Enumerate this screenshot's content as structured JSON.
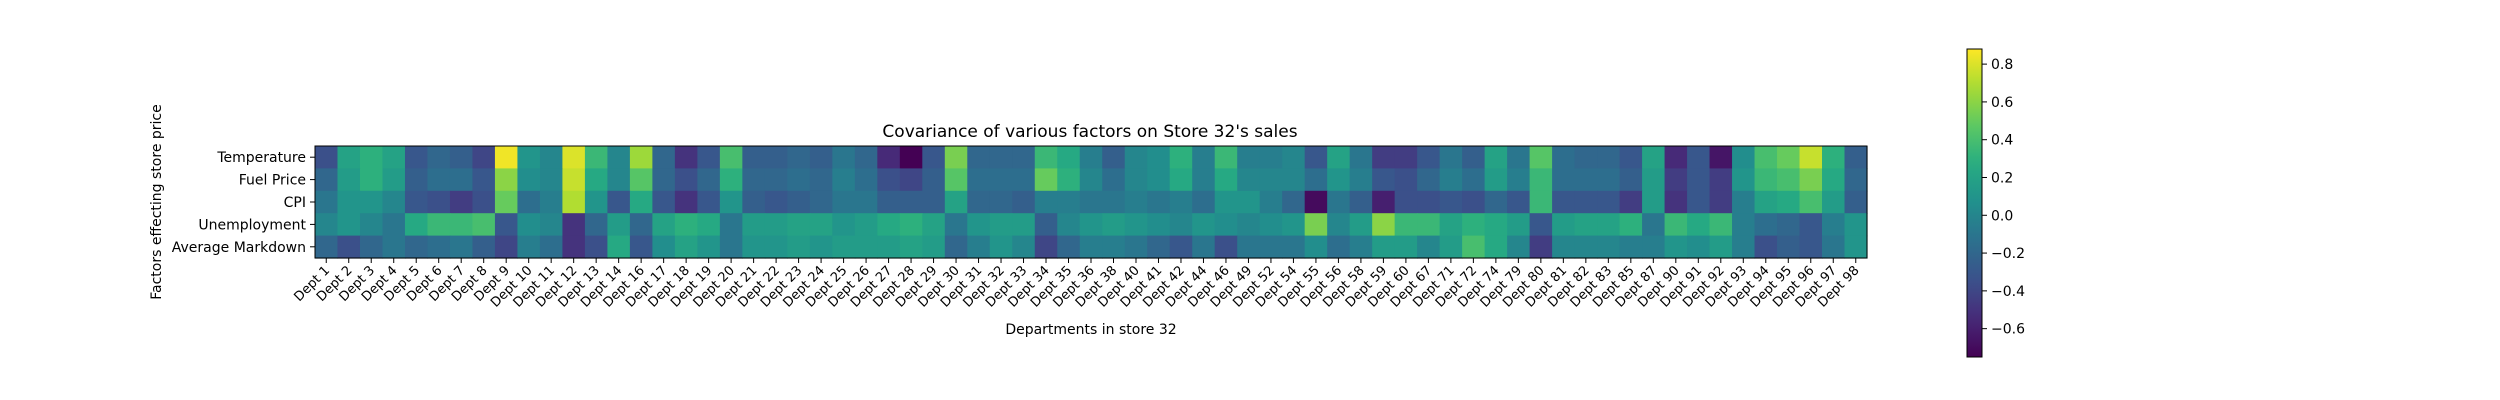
{
  "chart_data": {
    "type": "heatmap",
    "title": "Covariance of various factors on Store 32's sales",
    "xlabel": "Departments in store 32",
    "ylabel": "Factors effecting store price",
    "rows": [
      "Temperature",
      "Fuel Price",
      "CPI",
      "Unemployment",
      "Average Markdown"
    ],
    "columns": [
      "Dept 1",
      "Dept 2",
      "Dept 3",
      "Dept 4",
      "Dept 5",
      "Dept 6",
      "Dept 7",
      "Dept 8",
      "Dept 9",
      "Dept 10",
      "Dept 11",
      "Dept 12",
      "Dept 13",
      "Dept 14",
      "Dept 16",
      "Dept 17",
      "Dept 18",
      "Dept 19",
      "Dept 20",
      "Dept 21",
      "Dept 22",
      "Dept 23",
      "Dept 24",
      "Dept 25",
      "Dept 26",
      "Dept 27",
      "Dept 28",
      "Dept 29",
      "Dept 30",
      "Dept 31",
      "Dept 32",
      "Dept 33",
      "Dept 34",
      "Dept 35",
      "Dept 36",
      "Dept 38",
      "Dept 40",
      "Dept 41",
      "Dept 42",
      "Dept 44",
      "Dept 46",
      "Dept 49",
      "Dept 52",
      "Dept 54",
      "Dept 55",
      "Dept 56",
      "Dept 58",
      "Dept 59",
      "Dept 60",
      "Dept 67",
      "Dept 71",
      "Dept 72",
      "Dept 74",
      "Dept 79",
      "Dept 80",
      "Dept 81",
      "Dept 82",
      "Dept 83",
      "Dept 85",
      "Dept 87",
      "Dept 90",
      "Dept 91",
      "Dept 92",
      "Dept 93",
      "Dept 94",
      "Dept 95",
      "Dept 96",
      "Dept 97",
      "Dept 98"
    ],
    "values": [
      [
        -0.35,
        0.2,
        0.3,
        0.2,
        -0.3,
        -0.2,
        -0.25,
        -0.4,
        0.85,
        0.1,
        0.0,
        0.8,
        0.35,
        0.0,
        0.65,
        -0.2,
        -0.5,
        -0.3,
        0.4,
        -0.25,
        -0.25,
        -0.2,
        -0.25,
        -0.1,
        -0.2,
        -0.55,
        -0.75,
        -0.3,
        0.55,
        -0.2,
        -0.2,
        -0.2,
        0.35,
        0.25,
        -0.05,
        -0.25,
        0.0,
        0.05,
        0.3,
        -0.05,
        0.35,
        -0.05,
        -0.05,
        0.0,
        -0.3,
        0.2,
        -0.1,
        -0.45,
        -0.45,
        -0.3,
        -0.1,
        -0.25,
        0.2,
        -0.1,
        0.45,
        -0.15,
        -0.2,
        -0.2,
        -0.3,
        0.2,
        -0.55,
        -0.3,
        -0.65,
        0.05,
        0.4,
        0.5,
        0.75,
        0.3,
        -0.25
      ],
      [
        -0.2,
        0.15,
        0.3,
        0.15,
        -0.25,
        -0.15,
        -0.15,
        -0.3,
        0.6,
        0.05,
        0.0,
        0.75,
        0.25,
        0.0,
        0.45,
        -0.2,
        -0.35,
        -0.2,
        0.3,
        -0.2,
        -0.2,
        -0.15,
        -0.2,
        -0.05,
        -0.15,
        -0.35,
        -0.4,
        -0.25,
        0.45,
        -0.15,
        -0.15,
        -0.15,
        0.5,
        0.3,
        0.0,
        -0.15,
        0.0,
        0.05,
        0.25,
        -0.05,
        0.25,
        0.0,
        0.0,
        0.0,
        -0.15,
        0.1,
        -0.05,
        -0.3,
        -0.35,
        -0.2,
        -0.05,
        -0.15,
        0.15,
        -0.05,
        0.35,
        -0.15,
        -0.15,
        -0.15,
        -0.25,
        0.15,
        -0.45,
        -0.3,
        -0.45,
        0.1,
        0.35,
        0.4,
        0.55,
        0.25,
        -0.2
      ],
      [
        -0.1,
        0.1,
        0.1,
        0.0,
        -0.3,
        -0.35,
        -0.45,
        -0.35,
        0.5,
        -0.15,
        -0.05,
        0.7,
        0.1,
        -0.3,
        0.25,
        -0.3,
        -0.5,
        -0.3,
        0.1,
        -0.25,
        -0.3,
        -0.25,
        -0.2,
        -0.1,
        -0.1,
        -0.25,
        -0.25,
        -0.25,
        0.2,
        -0.2,
        -0.2,
        -0.25,
        -0.05,
        -0.05,
        -0.1,
        -0.1,
        -0.05,
        -0.1,
        -0.05,
        -0.15,
        0.1,
        0.1,
        -0.05,
        -0.2,
        -0.7,
        -0.1,
        -0.25,
        -0.6,
        -0.35,
        -0.35,
        -0.3,
        -0.35,
        -0.2,
        -0.3,
        0.35,
        -0.3,
        -0.3,
        -0.3,
        -0.45,
        0.15,
        -0.5,
        -0.3,
        -0.45,
        -0.05,
        0.2,
        0.25,
        0.4,
        0.15,
        -0.25
      ],
      [
        0.0,
        0.1,
        0.0,
        -0.1,
        0.25,
        0.35,
        0.35,
        0.4,
        -0.3,
        0.05,
        0.0,
        -0.5,
        -0.2,
        0.15,
        -0.2,
        0.2,
        0.3,
        0.25,
        -0.1,
        0.15,
        0.15,
        0.2,
        0.2,
        0.1,
        0.15,
        0.25,
        0.3,
        0.2,
        -0.1,
        0.1,
        0.15,
        0.15,
        -0.25,
        0.0,
        0.1,
        0.15,
        0.1,
        0.05,
        0.0,
        0.1,
        0.05,
        0.0,
        0.05,
        0.1,
        0.55,
        0.0,
        0.15,
        0.6,
        0.35,
        0.35,
        0.2,
        0.3,
        0.25,
        0.15,
        -0.3,
        0.15,
        0.2,
        0.2,
        0.3,
        -0.1,
        0.35,
        0.25,
        0.35,
        -0.05,
        -0.15,
        -0.2,
        -0.3,
        -0.05,
        0.1
      ],
      [
        -0.2,
        -0.35,
        -0.2,
        -0.1,
        -0.2,
        -0.15,
        -0.1,
        -0.25,
        -0.4,
        -0.05,
        -0.15,
        -0.5,
        -0.35,
        0.25,
        -0.3,
        0.05,
        0.2,
        0.1,
        -0.1,
        0.1,
        0.1,
        0.15,
        0.1,
        0.15,
        0.15,
        0.15,
        0.2,
        0.15,
        -0.2,
        -0.05,
        0.1,
        0.0,
        -0.4,
        -0.2,
        -0.05,
        -0.05,
        -0.1,
        -0.2,
        -0.3,
        -0.1,
        -0.35,
        -0.1,
        -0.1,
        -0.1,
        0.05,
        -0.15,
        -0.05,
        0.15,
        0.15,
        0.0,
        0.15,
        0.4,
        0.25,
        0.0,
        -0.45,
        0.0,
        0.0,
        0.0,
        -0.05,
        -0.05,
        0.1,
        0.05,
        0.15,
        -0.05,
        -0.35,
        -0.25,
        -0.3,
        -0.1,
        0.1
      ]
    ],
    "colorbar": {
      "colormap": "viridis",
      "vmin": -0.75,
      "vmax": 0.88,
      "ticks": [
        -0.6,
        -0.4,
        -0.2,
        0.0,
        0.2,
        0.4,
        0.6,
        0.8
      ],
      "tick_labels": [
        "−0.6",
        "−0.4",
        "−0.2",
        "0.0",
        "0.2",
        "0.4",
        "0.6",
        "0.8"
      ]
    },
    "grid": false
  }
}
